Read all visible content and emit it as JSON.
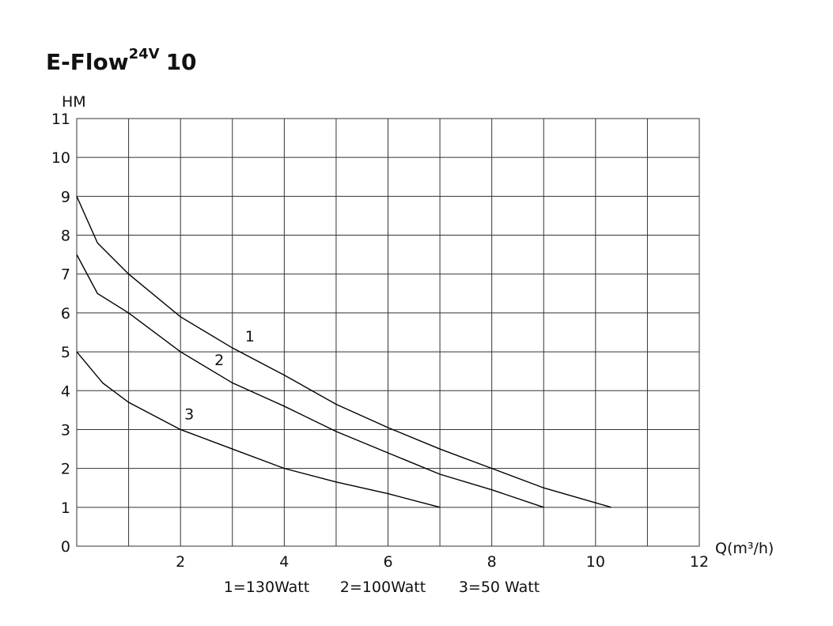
{
  "chart_data": {
    "type": "line",
    "title": "E-Flow",
    "title_superscript": "24V",
    "title_suffix": "10",
    "ylabel": "HM",
    "xlabel": "Q(m³/h)",
    "xlim": [
      0,
      12
    ],
    "xticks": [
      2,
      4,
      6,
      8,
      10,
      12
    ],
    "xminorticks": [
      1,
      3,
      5,
      7,
      9,
      11
    ],
    "ylim": [
      0,
      11
    ],
    "yticks": [
      0,
      1,
      2,
      3,
      4,
      5,
      6,
      7,
      8,
      9,
      10,
      11
    ],
    "grid": true,
    "color": "#000000",
    "series": [
      {
        "name": "1",
        "x": [
          0,
          0.4,
          1,
          2,
          3,
          4,
          5,
          6,
          7,
          8,
          9,
          10.3
        ],
        "values": [
          9,
          7.8,
          7,
          5.9,
          5.1,
          4.4,
          3.65,
          3.05,
          2.5,
          2.0,
          1.5,
          1.0
        ]
      },
      {
        "name": "2",
        "x": [
          0,
          0.4,
          1,
          2,
          3,
          4,
          5,
          6,
          7,
          8,
          9
        ],
        "values": [
          7.5,
          6.5,
          6,
          5,
          4.2,
          3.6,
          2.95,
          2.4,
          1.85,
          1.45,
          1.0
        ]
      },
      {
        "name": "3",
        "x": [
          0,
          0.5,
          1,
          2,
          3,
          4,
          5,
          6,
          7
        ],
        "values": [
          5,
          4.2,
          3.7,
          3.0,
          2.5,
          2.0,
          1.65,
          1.35,
          1.0
        ]
      }
    ],
    "legend": [
      "1=130Watt",
      "2=100Watt",
      "3=50 Watt"
    ]
  }
}
